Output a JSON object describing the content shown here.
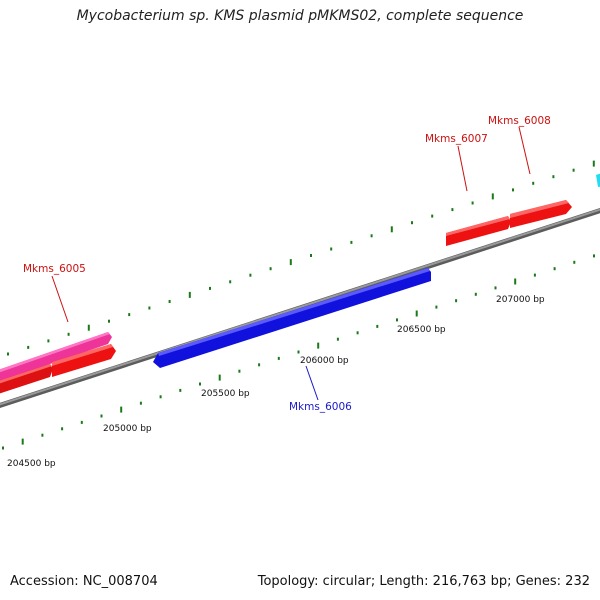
{
  "title": "Mycobacterium sp. KMS plasmid pMKMS02, complete sequence",
  "footer": {
    "accession": "Accession: NC_008704",
    "summary": "Topology: circular; Length: 216,763 bp; Genes: 232"
  },
  "scale": {
    "labels": [
      "204500 bp",
      "205000 bp",
      "205500 bp",
      "206000 bp",
      "206500 bp",
      "207000 bp"
    ]
  },
  "genes": [
    {
      "name": "Mkms_6005",
      "color": "#cc1111"
    },
    {
      "name": "Mkms_6006",
      "color": "#1a1acc"
    },
    {
      "name": "Mkms_6007",
      "color": "#cc1111"
    },
    {
      "name": "Mkms_6008",
      "color": "#cc1111"
    }
  ],
  "colors": {
    "backbone": "#8a8a8a",
    "tick": "#1a7a1a",
    "forward_red": "#ee1111",
    "pink": "#ee3399",
    "blue": "#1111dd",
    "cyan": "#22ddee"
  }
}
